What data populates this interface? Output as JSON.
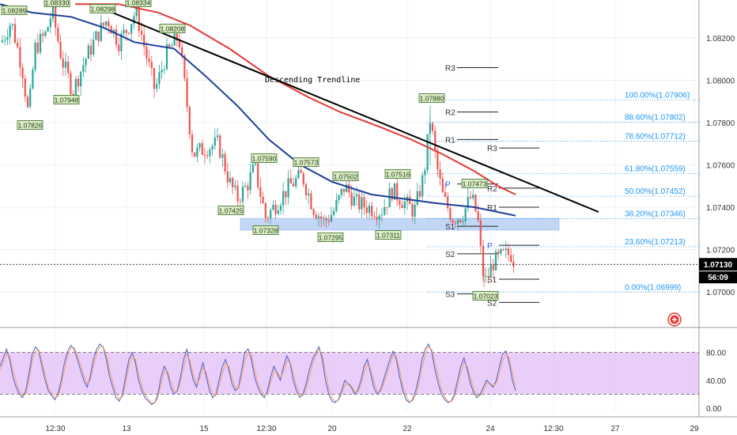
{
  "chart_data": {
    "type": "candlestick",
    "symbol_hint": "",
    "price_axis": {
      "ticks": [
        "1.08200",
        "1.08000",
        "1.07800",
        "1.07600",
        "1.07400",
        "1.07200",
        "1.07000"
      ],
      "range": [
        1.0688,
        1.0842
      ],
      "last_price": "1.07130",
      "countdown": "56:09"
    },
    "time_axis": {
      "ticks": [
        "12:30",
        "13",
        "15",
        "12:30",
        "20",
        "22",
        "24",
        "12:30",
        "27",
        "29"
      ]
    },
    "oscillator": {
      "ticks": [
        "80.00",
        "40.00",
        "0.00"
      ],
      "range": [
        0,
        100
      ],
      "levels": [
        80,
        20
      ],
      "series": [
        {
          "values": [
            60,
            72,
            85,
            70,
            45,
            30,
            20,
            15,
            25,
            50,
            78,
            88,
            82,
            60,
            40,
            25,
            18,
            12,
            20,
            40,
            65,
            82,
            90,
            85,
            70,
            55,
            40,
            30,
            45,
            70,
            85,
            92,
            88,
            70,
            45,
            30,
            15,
            10,
            20,
            45,
            70,
            80,
            65,
            40,
            25,
            15,
            10,
            5,
            8,
            20,
            45,
            60,
            50,
            30,
            20,
            25,
            45,
            70,
            85,
            60,
            40,
            30,
            50,
            65,
            45,
            25,
            15,
            20,
            40,
            60,
            70,
            55,
            35,
            25,
            30,
            55,
            80,
            85,
            70,
            45,
            30,
            20,
            15,
            25,
            45,
            60,
            50,
            40,
            60,
            75,
            65,
            40,
            25,
            15,
            20,
            35,
            55,
            70,
            80,
            88,
            70,
            40,
            20,
            10,
            8,
            12,
            25,
            40,
            35,
            30,
            20,
            25,
            40,
            60,
            70,
            50,
            30,
            20,
            25,
            40,
            55,
            70,
            82,
            70,
            45,
            25,
            12,
            8,
            12,
            25,
            45,
            70,
            85,
            92,
            80,
            55,
            35,
            20,
            12,
            8,
            10,
            20,
            40,
            60,
            72,
            55,
            35,
            22,
            15,
            20,
            30,
            40,
            35,
            30,
            40,
            60,
            78,
            82,
            65,
            40,
            25
          ]
        },
        {
          "values": [
            55,
            65,
            78,
            75,
            55,
            38,
            25,
            18,
            20,
            40,
            68,
            82,
            84,
            68,
            48,
            30,
            22,
            15,
            17,
            32,
            55,
            75,
            86,
            87,
            76,
            62,
            47,
            35,
            40,
            60,
            78,
            88,
            89,
            76,
            55,
            37,
            22,
            13,
            16,
            35,
            60,
            75,
            70,
            50,
            32,
            20,
            13,
            8,
            7,
            15,
            35,
            52,
            53,
            38,
            25,
            23,
            37,
            58,
            77,
            68,
            48,
            35,
            42,
            57,
            52,
            33,
            20,
            18,
            32,
            50,
            64,
            60,
            43,
            30,
            28,
            45,
            68,
            80,
            76,
            55,
            37,
            25,
            18,
            21,
            37,
            52,
            52,
            44,
            52,
            67,
            67,
            50,
            32,
            20,
            18,
            28,
            45,
            62,
            75,
            84,
            77,
            52,
            30,
            15,
            10,
            11,
            20,
            33,
            36,
            32,
            24,
            23,
            33,
            50,
            63,
            57,
            38,
            25,
            23,
            33,
            47,
            62,
            76,
            74,
            55,
            33,
            18,
            10,
            10,
            19,
            35,
            58,
            76,
            88,
            84,
            65,
            45,
            27,
            16,
            10,
            9,
            15,
            32,
            50,
            65,
            60,
            43,
            28,
            18,
            18,
            25,
            35,
            36,
            32,
            36,
            50,
            68,
            78,
            72,
            50,
            32
          ]
        }
      ]
    },
    "annotations": {
      "trendline_label": "Descending Trendline",
      "swing_labels": [
        "1.08289",
        "1.08330",
        "1.08298",
        "1.08334",
        "1.08208",
        "1.07826",
        "1.07948",
        "1.07590",
        "1.07573",
        "1.07502",
        "1.07516",
        "1.07880",
        "1.07473",
        "1.07425",
        "1.07328",
        "1.07295",
        "1.07311",
        "1.07023"
      ],
      "fibonacci": [
        {
          "label": "100.00%(1.07906)",
          "price": 1.07906
        },
        {
          "label": "88.60%(1.07802)",
          "price": 1.07802
        },
        {
          "label": "78.60%(1.07712)",
          "price": 1.07712
        },
        {
          "label": "61.80%(1.07559)",
          "price": 1.07559
        },
        {
          "label": "50.00%(1.07452)",
          "price": 1.07452
        },
        {
          "label": "38.20%(1.07346)",
          "price": 1.07346
        },
        {
          "label": "23.60%(1.07213)",
          "price": 1.07213
        },
        {
          "label": "0.00%(1.06999)",
          "price": 1.06999
        }
      ],
      "pivots_a": [
        {
          "label": "R3",
          "price": 1.0806
        },
        {
          "label": "R2",
          "price": 1.0785
        },
        {
          "label": "R1",
          "price": 1.0772
        },
        {
          "label": "P",
          "price": 1.0751
        },
        {
          "label": "S1",
          "price": 1.0731
        },
        {
          "label": "S2",
          "price": 1.0718
        },
        {
          "label": "S3",
          "price": 1.0699
        }
      ],
      "pivots_b": [
        {
          "label": "R3",
          "price": 1.0768
        },
        {
          "label": "R2",
          "price": 1.0749
        },
        {
          "label": "R1",
          "price": 1.074
        },
        {
          "label": "P",
          "price": 1.0722
        },
        {
          "label": "S1",
          "price": 1.0706
        },
        {
          "label": "S2",
          "price": 1.0695
        }
      ]
    },
    "colors": {
      "bull": "#26a69a",
      "bear": "#ef5350",
      "ma_fast": "#e53935",
      "ma_slow": "#1e3f99",
      "trendline": "#000000",
      "fib": "#2196f3",
      "zone": "#bbd2f5",
      "osc_band": "#e1bdf7",
      "osc_k": "#4a5fc1",
      "osc_d": "#f0a16a",
      "label_bg": "#dcedc8",
      "label_border": "#33691e"
    }
  }
}
